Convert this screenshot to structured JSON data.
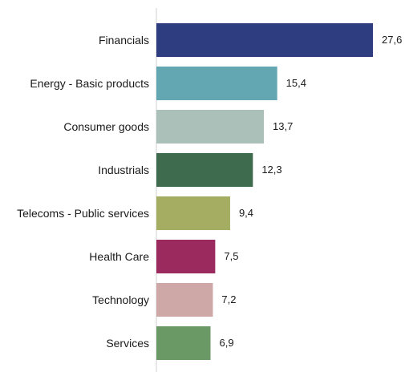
{
  "chart_data": {
    "type": "bar",
    "orientation": "horizontal",
    "title": "",
    "xlabel": "",
    "ylabel": "",
    "grid": false,
    "legend": "none",
    "xlim": [
      0,
      27.6
    ],
    "categories": [
      "Financials",
      "Energy - Basic products",
      "Consumer goods",
      "Industrials",
      "Telecoms - Public services",
      "Health Care",
      "Technology",
      "Services"
    ],
    "values": [
      27.6,
      15.4,
      13.7,
      12.3,
      9.4,
      7.5,
      7.2,
      6.9
    ],
    "value_labels": [
      "27,6",
      "15,4",
      "13,7",
      "12,3",
      "9,4",
      "7,5",
      "7,2",
      "6,9"
    ],
    "colors": [
      "#2e3d80",
      "#62a7b2",
      "#abc0b8",
      "#3e6b4d",
      "#a5ad63",
      "#9b2a5f",
      "#cda8a6",
      "#6b9965"
    ],
    "axis_color": "#d0d0d0"
  }
}
